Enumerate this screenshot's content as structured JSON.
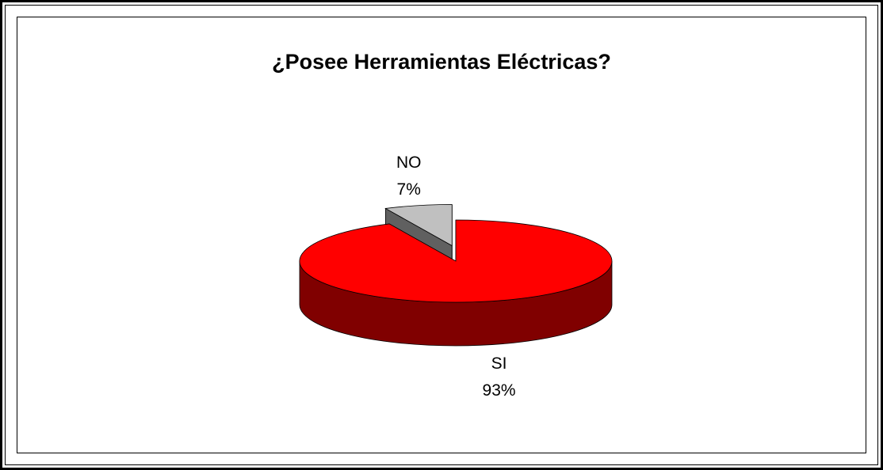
{
  "chart_data": {
    "type": "pie3d",
    "title": "¿Posee Herramientas Eléctricas?",
    "categories": [
      "SI",
      "NO"
    ],
    "values": [
      93,
      7
    ],
    "value_labels": [
      "93%",
      "7%"
    ],
    "colors": [
      "#ff0000",
      "#c0c0c0"
    ],
    "explode": [
      false,
      true
    ]
  }
}
